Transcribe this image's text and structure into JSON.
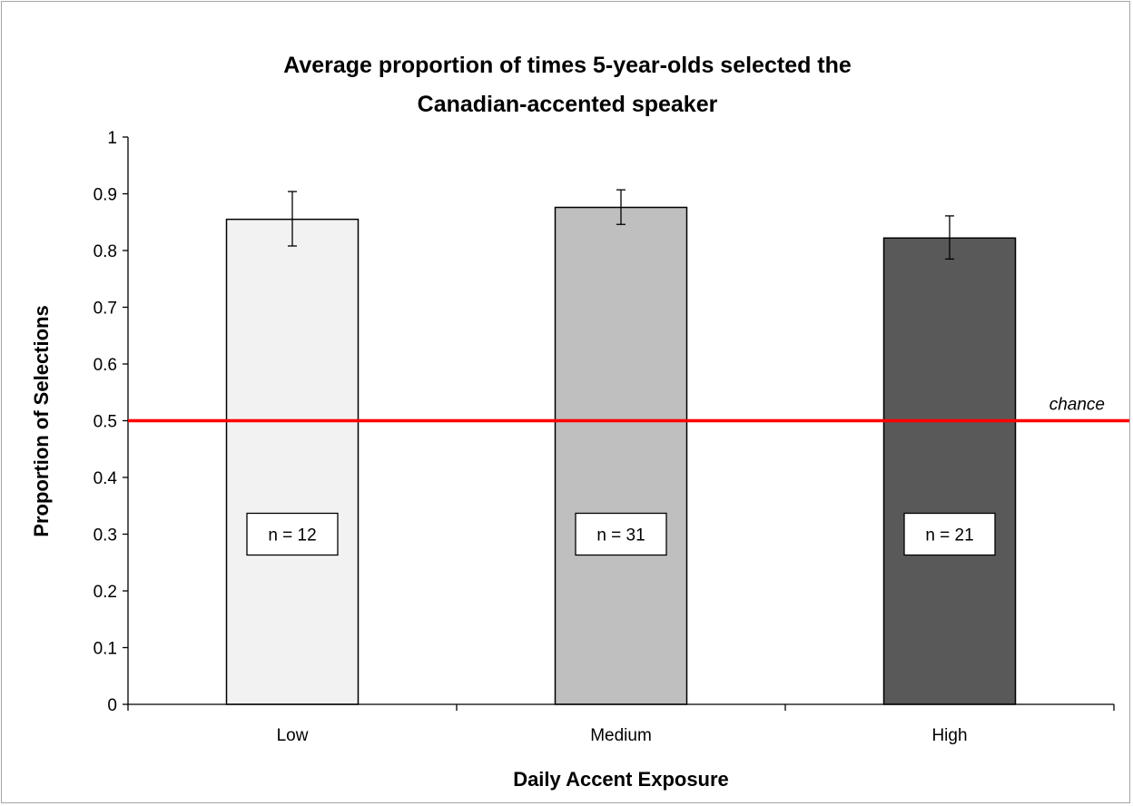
{
  "chart_data": {
    "type": "bar",
    "title_lines": [
      "Average proportion of times 5-year-olds selected the",
      "Canadian-accented speaker"
    ],
    "xlabel": "Daily Accent Exposure",
    "ylabel": "Proportion of Selections",
    "categories": [
      "Low",
      "Medium",
      "High"
    ],
    "values": [
      0.855,
      0.876,
      0.822
    ],
    "error_low": [
      0.808,
      0.846,
      0.785
    ],
    "error_high": [
      0.904,
      0.907,
      0.861
    ],
    "sample_labels": [
      "n = 12",
      "n = 31",
      "n = 21"
    ],
    "sample_label_y": 0.3,
    "bar_colors": [
      "#f2f2f2",
      "#bfbfbf",
      "#595959"
    ],
    "ylim": [
      0,
      1
    ],
    "yticks": [
      "0",
      "0.1",
      "0.2",
      "0.3",
      "0.4",
      "0.5",
      "0.6",
      "0.7",
      "0.8",
      "0.9",
      "1"
    ],
    "reference_line": {
      "y": 0.5,
      "label": "chance",
      "color": "#ff0000"
    },
    "grid": false,
    "legend": "none"
  }
}
